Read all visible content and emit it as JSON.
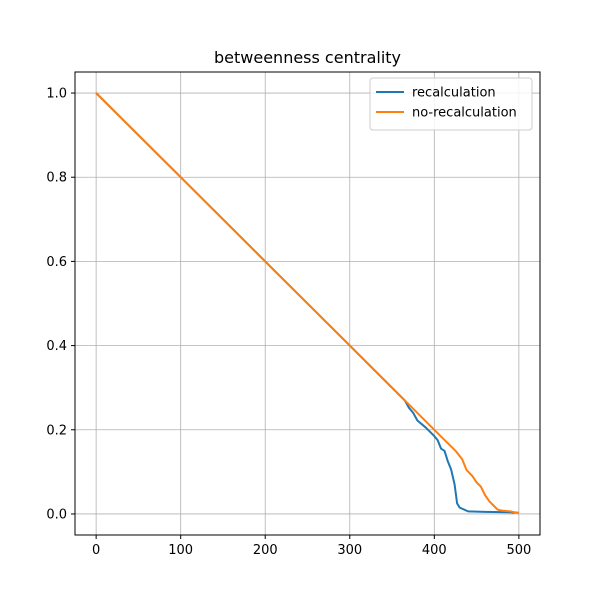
{
  "chart_data": {
    "type": "line",
    "title": "betweenness centrality",
    "xlabel": "",
    "ylabel": "",
    "xlim": [
      -25,
      525
    ],
    "ylim": [
      -0.05,
      1.05
    ],
    "xticks": [
      0,
      100,
      200,
      300,
      400,
      500
    ],
    "yticks": [
      0.0,
      0.2,
      0.4,
      0.6,
      0.8,
      1.0
    ],
    "xtick_labels": [
      "0",
      "100",
      "200",
      "300",
      "400",
      "500"
    ],
    "ytick_labels": [
      "0.0",
      "0.2",
      "0.4",
      "0.6",
      "0.8",
      "1.0"
    ],
    "grid": true,
    "legend_position": "upper-right",
    "series": [
      {
        "name": "recalculation",
        "color": "#1f77b4",
        "points": [
          [
            0,
            1.0
          ],
          [
            100,
            0.8
          ],
          [
            200,
            0.6
          ],
          [
            300,
            0.4
          ],
          [
            365,
            0.27
          ],
          [
            370,
            0.252
          ],
          [
            375,
            0.24
          ],
          [
            380,
            0.222
          ],
          [
            390,
            0.205
          ],
          [
            400,
            0.185
          ],
          [
            404,
            0.175
          ],
          [
            408,
            0.155
          ],
          [
            412,
            0.15
          ],
          [
            416,
            0.125
          ],
          [
            420,
            0.105
          ],
          [
            424,
            0.07
          ],
          [
            427,
            0.025
          ],
          [
            430,
            0.015
          ],
          [
            440,
            0.006
          ],
          [
            460,
            0.005
          ],
          [
            490,
            0.004
          ],
          [
            495,
            0.003
          ]
        ]
      },
      {
        "name": "no-recalculation",
        "color": "#ff7f0e",
        "points": [
          [
            0,
            1.0
          ],
          [
            100,
            0.8
          ],
          [
            200,
            0.6
          ],
          [
            300,
            0.4
          ],
          [
            365,
            0.27
          ],
          [
            400,
            0.2
          ],
          [
            425,
            0.15
          ],
          [
            433,
            0.13
          ],
          [
            438,
            0.105
          ],
          [
            445,
            0.09
          ],
          [
            450,
            0.075
          ],
          [
            455,
            0.065
          ],
          [
            460,
            0.045
          ],
          [
            465,
            0.03
          ],
          [
            470,
            0.02
          ],
          [
            475,
            0.01
          ],
          [
            480,
            0.008
          ],
          [
            490,
            0.006
          ],
          [
            495,
            0.004
          ],
          [
            500,
            0.003
          ]
        ]
      }
    ]
  }
}
